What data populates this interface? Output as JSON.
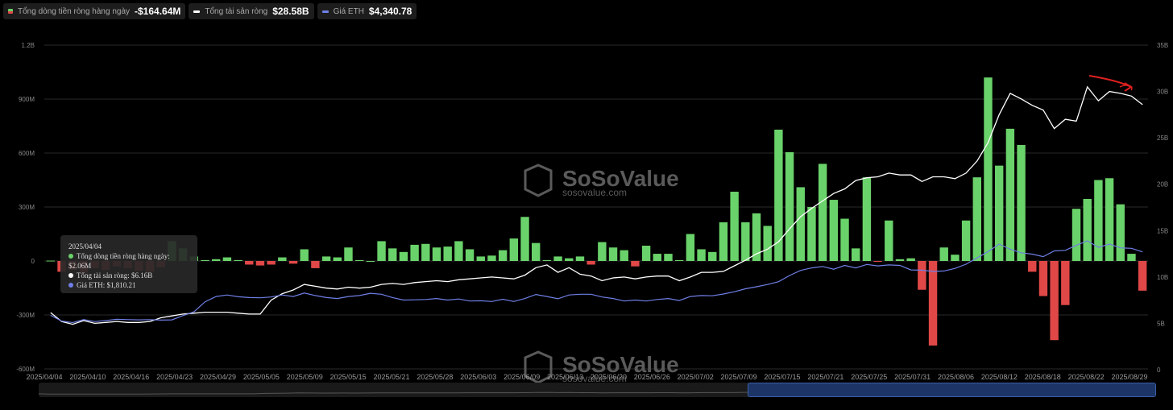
{
  "legend": {
    "flow_label": "Tổng dòng tiền ròng hàng ngày",
    "flow_value": "-$164.64M",
    "assets_label": "Tổng tài sản ròng",
    "assets_value": "$28.58B",
    "eth_label": "Giá ETH",
    "eth_value": "$4,340.78"
  },
  "tooltip": {
    "date": "2025/04/04",
    "flow": "Tổng dòng tiền ròng hàng ngày: $2.06M",
    "assets": "Tổng tài sản ròng: $6.16B",
    "eth": "Giá ETH: $1,810.21"
  },
  "watermark": {
    "brand": "SoSoValue",
    "site": "sosovalue.com"
  },
  "colors": {
    "positive": "#6ad26a",
    "negative": "#e04848",
    "assets_line": "#ffffff",
    "eth_line": "#6f7fe6",
    "annotation": "#e02020"
  },
  "chart_data": {
    "type": "bar",
    "title": "",
    "xlabel": "",
    "ylabel": "",
    "grid": true,
    "x_tick_labels": [
      "2025/04/04",
      "2025/04/10",
      "2025/04/16",
      "2025/04/23",
      "2025/04/29",
      "2025/05/05",
      "2025/05/09",
      "2025/05/15",
      "2025/05/21",
      "2025/05/28",
      "2025/06/03",
      "2025/06/09",
      "2025/06/13",
      "2025/06/20",
      "2025/06/26",
      "2025/07/02",
      "2025/07/09",
      "2025/07/15",
      "2025/07/21",
      "2025/07/25",
      "2025/07/31",
      "2025/08/06",
      "2025/08/12",
      "2025/08/18",
      "2025/08/22",
      "2025/08/29"
    ],
    "y_left": {
      "ticks": [
        "1.2B",
        "900M",
        "600M",
        "300M",
        "0",
        "-300M",
        "-600M"
      ],
      "ylim": [
        -600,
        1200
      ],
      "unit": "M"
    },
    "y_right": {
      "ticks": [
        "35B",
        "30B",
        "25B",
        "20B",
        "15B",
        "10B",
        "5B",
        "0"
      ],
      "ylim": [
        0,
        35
      ],
      "unit": "B"
    },
    "series": [
      {
        "name": "Tổng dòng tiền ròng hàng ngày",
        "type": "bar",
        "values": [
          2,
          -60,
          -50,
          -65,
          -40,
          -50,
          -30,
          -40,
          -55,
          -60,
          -35,
          110,
          70,
          25,
          5,
          10,
          20,
          5,
          -20,
          -25,
          -20,
          20,
          -15,
          65,
          -40,
          25,
          20,
          75,
          5,
          0,
          110,
          70,
          50,
          90,
          95,
          75,
          80,
          110,
          65,
          25,
          30,
          60,
          125,
          245,
          100,
          5,
          25,
          15,
          25,
          -20,
          105,
          75,
          60,
          -30,
          85,
          40,
          40,
          5,
          150,
          65,
          50,
          215,
          385,
          215,
          265,
          195,
          730,
          605,
          410,
          300,
          540,
          340,
          235,
          70,
          465,
          -5,
          225,
          10,
          15,
          -160,
          -470,
          75,
          35,
          225,
          465,
          1020,
          530,
          735,
          645,
          -60,
          -195,
          -440,
          -245,
          290,
          345,
          450,
          460,
          315,
          40,
          -165
        ],
        "axis": "left"
      },
      {
        "name": "Tổng tài sản ròng",
        "type": "line",
        "values": [
          6.16,
          5.2,
          4.9,
          5.3,
          5.0,
          5.1,
          5.2,
          5.1,
          5.1,
          5.2,
          5.6,
          5.8,
          6.0,
          6.1,
          6.2,
          6.2,
          6.2,
          6.1,
          6.0,
          6.0,
          7.5,
          8.2,
          8.6,
          9.2,
          9.0,
          8.8,
          8.7,
          8.9,
          8.8,
          8.9,
          9.2,
          9.3,
          9.2,
          9.4,
          9.5,
          9.6,
          9.5,
          9.7,
          9.8,
          9.9,
          10.0,
          9.9,
          9.8,
          10.2,
          11.0,
          11.3,
          10.5,
          11.0,
          10.3,
          10.1,
          9.6,
          9.9,
          10.0,
          9.8,
          10.0,
          10.1,
          10.1,
          9.6,
          10.0,
          10.5,
          10.5,
          10.6,
          11.2,
          11.8,
          12.5,
          13.0,
          13.8,
          15.2,
          16.5,
          17.4,
          18.2,
          19.0,
          19.5,
          20.4,
          20.7,
          20.8,
          21.2,
          21.0,
          21.0,
          20.3,
          20.8,
          20.8,
          20.6,
          21.2,
          22.5,
          24.5,
          27.5,
          29.8,
          29.2,
          28.5,
          28.0,
          26.0,
          27.0,
          26.8,
          30.5,
          29.0,
          30.0,
          29.8,
          29.5,
          28.58
        ],
        "axis": "right"
      },
      {
        "name": "Giá ETH",
        "type": "line",
        "values": [
          1810.21,
          1580,
          1520,
          1640,
          1560,
          1600,
          1650,
          1640,
          1630,
          1640,
          1620,
          1630,
          1800,
          1950,
          2350,
          2560,
          2620,
          2550,
          2520,
          2510,
          2540,
          2620,
          2560,
          2700,
          2600,
          2520,
          2480,
          2560,
          2600,
          2690,
          2650,
          2520,
          2420,
          2430,
          2440,
          2480,
          2420,
          2460,
          2380,
          2390,
          2360,
          2450,
          2360,
          2480,
          2640,
          2560,
          2470,
          2620,
          2650,
          2650,
          2540,
          2480,
          2380,
          2420,
          2380,
          2440,
          2480,
          2400,
          2560,
          2600,
          2590,
          2660,
          2750,
          2870,
          2950,
          3040,
          3150,
          3400,
          3600,
          3700,
          3760,
          3650,
          3800,
          3700,
          3840,
          3780,
          3820,
          3800,
          3620,
          3610,
          3560,
          3580,
          3680,
          3850,
          4100,
          4350,
          4650,
          4450,
          4300,
          4250,
          4150,
          4380,
          4400,
          4600,
          4780,
          4520,
          4650,
          4500,
          4480,
          4340.78
        ],
        "axis": "eth"
      }
    ]
  }
}
